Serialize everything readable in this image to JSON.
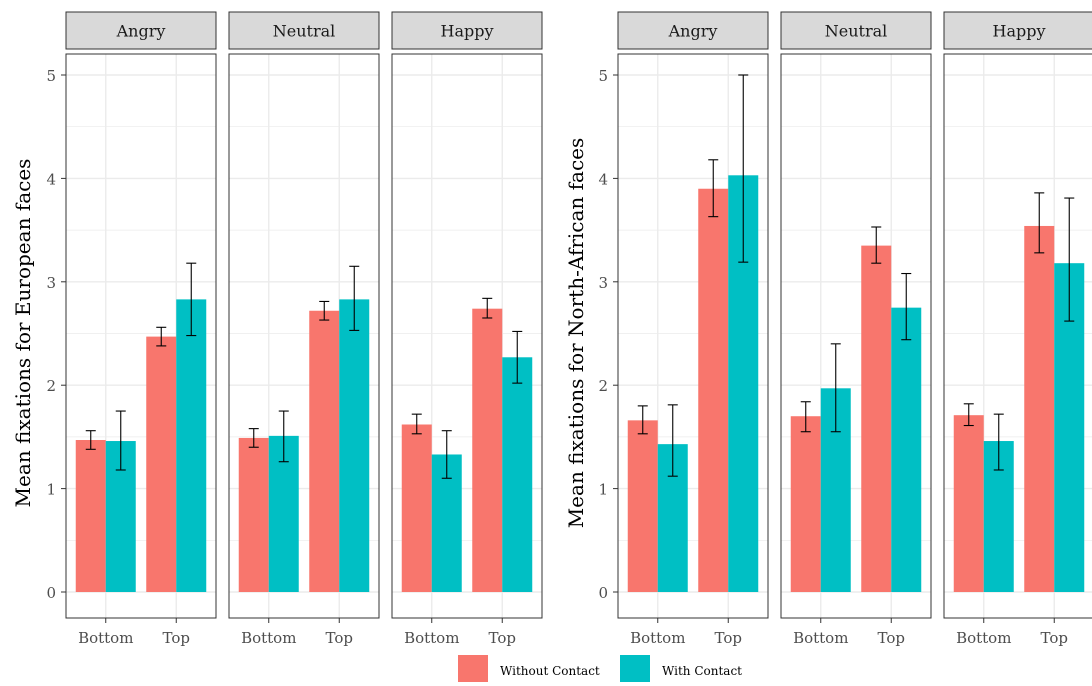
{
  "legend": {
    "entries": [
      {
        "label": "Without Contact",
        "color": "#F8766D"
      },
      {
        "label": "With Contact",
        "color": "#00BFC4"
      }
    ],
    "placement": "bottom"
  },
  "colors": {
    "without": "#F8766D",
    "with": "#00BFC4",
    "strip": "#d9d9d9",
    "grid": "#ebebeb",
    "border": "#333333"
  },
  "chart_data": [
    {
      "type": "bar",
      "ylabel": "Mean fixations for European faces",
      "ylim": [
        0,
        5
      ],
      "yticks": [
        "0",
        "1",
        "2",
        "3",
        "4",
        "5"
      ],
      "categories": [
        "Bottom",
        "Top"
      ],
      "panels": [
        {
          "label": "Angry",
          "series": [
            {
              "name": "Without Contact",
              "values": [
                1.47,
                2.47
              ],
              "err_low": [
                1.38,
                2.38
              ],
              "err_high": [
                1.56,
                2.56
              ]
            },
            {
              "name": "With Contact",
              "values": [
                1.46,
                2.83
              ],
              "err_low": [
                1.18,
                2.48
              ],
              "err_high": [
                1.75,
                3.18
              ]
            }
          ]
        },
        {
          "label": "Neutral",
          "series": [
            {
              "name": "Without Contact",
              "values": [
                1.49,
                2.72
              ],
              "err_low": [
                1.4,
                2.63
              ],
              "err_high": [
                1.58,
                2.81
              ]
            },
            {
              "name": "With Contact",
              "values": [
                1.51,
                2.83
              ],
              "err_low": [
                1.26,
                2.53
              ],
              "err_high": [
                1.75,
                3.15
              ]
            }
          ]
        },
        {
          "label": "Happy",
          "series": [
            {
              "name": "Without Contact",
              "values": [
                1.62,
                2.74
              ],
              "err_low": [
                1.53,
                2.65
              ],
              "err_high": [
                1.72,
                2.84
              ]
            },
            {
              "name": "With Contact",
              "values": [
                1.33,
                2.27
              ],
              "err_low": [
                1.1,
                2.02
              ],
              "err_high": [
                1.56,
                2.52
              ]
            }
          ]
        }
      ]
    },
    {
      "type": "bar",
      "ylabel": "Mean fixations for North-African faces",
      "ylim": [
        0,
        5
      ],
      "yticks": [
        "0",
        "1",
        "2",
        "3",
        "4",
        "5"
      ],
      "categories": [
        "Bottom",
        "Top"
      ],
      "panels": [
        {
          "label": "Angry",
          "series": [
            {
              "name": "Without Contact",
              "values": [
                1.66,
                3.9
              ],
              "err_low": [
                1.53,
                3.63
              ],
              "err_high": [
                1.8,
                4.18
              ]
            },
            {
              "name": "With Contact",
              "values": [
                1.43,
                4.03
              ],
              "err_low": [
                1.12,
                3.19
              ],
              "err_high": [
                1.81,
                5.0
              ]
            }
          ]
        },
        {
          "label": "Neutral",
          "series": [
            {
              "name": "Without Contact",
              "values": [
                1.7,
                3.35
              ],
              "err_low": [
                1.55,
                3.18
              ],
              "err_high": [
                1.84,
                3.53
              ]
            },
            {
              "name": "With Contact",
              "values": [
                1.97,
                2.75
              ],
              "err_low": [
                1.55,
                2.44
              ],
              "err_high": [
                2.4,
                3.08
              ]
            }
          ]
        },
        {
          "label": "Happy",
          "series": [
            {
              "name": "Without Contact",
              "values": [
                1.71,
                3.54
              ],
              "err_low": [
                1.61,
                3.28
              ],
              "err_high": [
                1.82,
                3.86
              ]
            },
            {
              "name": "With Contact",
              "values": [
                1.46,
                3.18
              ],
              "err_low": [
                1.18,
                2.62
              ],
              "err_high": [
                1.72,
                3.81
              ]
            }
          ]
        }
      ]
    }
  ]
}
